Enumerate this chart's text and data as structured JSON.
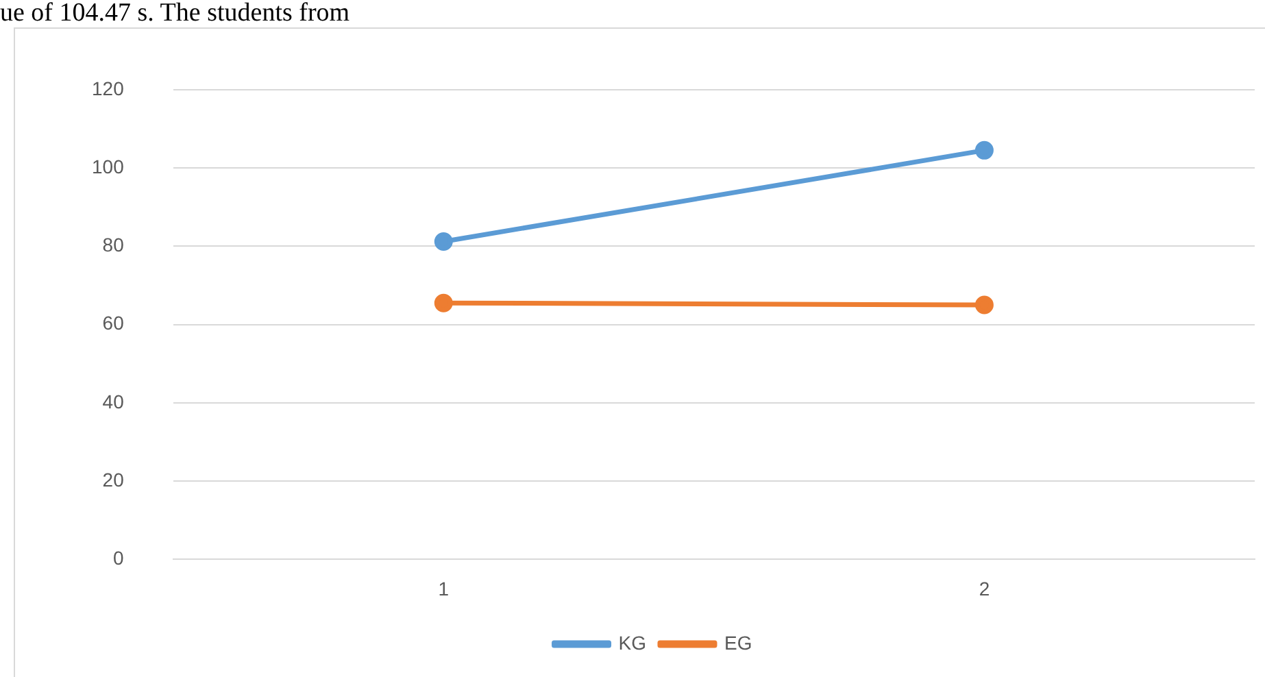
{
  "chart_data": {
    "type": "line",
    "categories": [
      "1",
      "2"
    ],
    "series": [
      {
        "name": "KG",
        "color": "#5b9bd5",
        "values": [
          81.2,
          104.5
        ]
      },
      {
        "name": "EG",
        "color": "#ed7d31",
        "values": [
          65.5,
          65
        ]
      }
    ],
    "ylim": [
      0,
      120
    ],
    "yticks": [
      0,
      20,
      40,
      60,
      80,
      100,
      120
    ],
    "grid": "y",
    "legend": "bottom",
    "marker": "circle",
    "line_style": "solid",
    "annotations": [
      "ue of 104.47 s. The students from"
    ]
  }
}
